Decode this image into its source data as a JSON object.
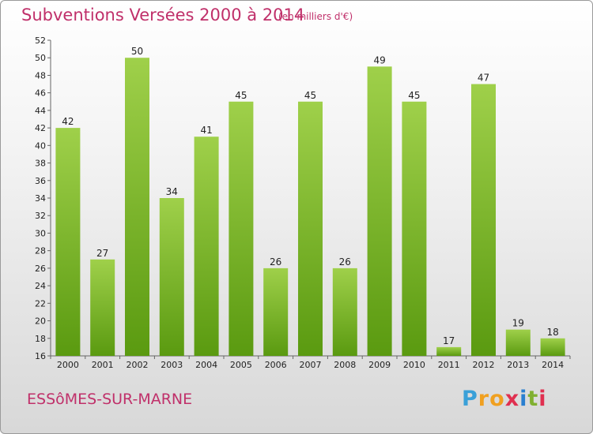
{
  "header": {
    "title": "Subventions Versées 2000 à 2014",
    "subtitle": "(en milliers d'€)"
  },
  "footer": {
    "town": "ESSôMES-SUR-MARNE",
    "logo_letters": [
      "P",
      "r",
      "o",
      "x",
      "i",
      "t",
      "i"
    ],
    "logo_colors": [
      "#3aa0d8",
      "#f0a020",
      "#f0a020",
      "#e03050",
      "#2a7fd0",
      "#80b030",
      "#e03050"
    ]
  },
  "colors": {
    "bar_light": "#9fd04a",
    "bar_dark": "#5a9a10",
    "accent": "#c0306a"
  },
  "chart_data": {
    "type": "bar",
    "categories": [
      "2000",
      "2001",
      "2002",
      "2003",
      "2004",
      "2005",
      "2006",
      "2007",
      "2008",
      "2009",
      "2010",
      "2011",
      "2012",
      "2013",
      "2014"
    ],
    "values": [
      42,
      27,
      50,
      34,
      41,
      45,
      26,
      45,
      26,
      49,
      45,
      17,
      47,
      19,
      18
    ],
    "title": "Subventions Versées 2000 à 2014",
    "xlabel": "",
    "ylabel": "",
    "ylim": [
      16,
      52
    ],
    "yticks": [
      16,
      18,
      20,
      22,
      24,
      26,
      28,
      30,
      32,
      34,
      36,
      38,
      40,
      42,
      44,
      46,
      48,
      50,
      52
    ],
    "grid": false,
    "legend": "none"
  }
}
